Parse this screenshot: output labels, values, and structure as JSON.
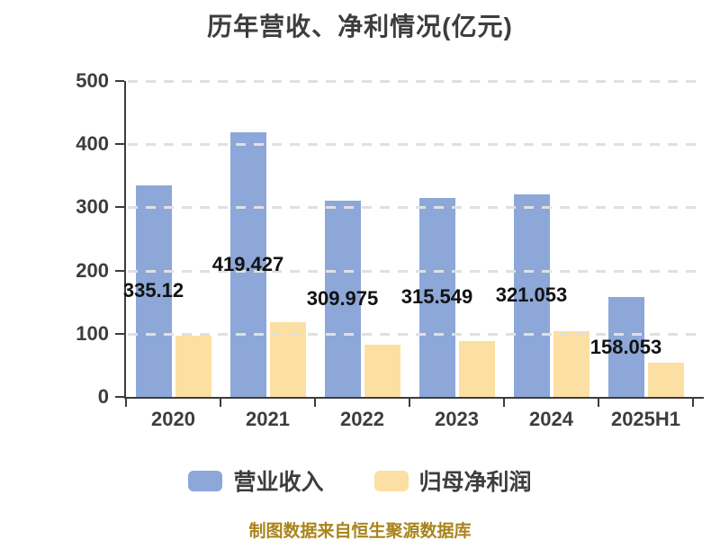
{
  "title": "历年营收、净利情况(亿元)",
  "footer": "制图数据来自恒生聚源数据库",
  "chart_data": {
    "type": "bar",
    "categories": [
      "2020",
      "2021",
      "2022",
      "2023",
      "2024",
      "2025H1"
    ],
    "series": [
      {
        "id": "revenue",
        "name": "营业收入",
        "color": "#8ca7d8",
        "values": [
          335.12,
          419.427,
          309.975,
          315.549,
          321.053,
          158.053
        ],
        "data_labels": [
          "335.12",
          "419.427",
          "309.975",
          "315.549",
          "321.053",
          "158.053"
        ]
      },
      {
        "id": "net-profit",
        "name": "归母净利润",
        "color": "#fcdfa2",
        "values": [
          97,
          118,
          82,
          89,
          104,
          54
        ],
        "data_labels": []
      }
    ],
    "xlabel": "",
    "ylabel": "",
    "ylim": [
      0,
      500
    ],
    "yticks": [
      0,
      100,
      200,
      300,
      400,
      500
    ],
    "grid": "horizontal-dashed",
    "legend_position": "bottom"
  },
  "colors": {
    "background": "#ffffff",
    "axis": "#3c3c3c",
    "grid": "#e0e0e0",
    "title": "#3d3d3d",
    "tick_label": "#3d3d3d",
    "data_label": "#121212",
    "footer": "#a9841c"
  }
}
